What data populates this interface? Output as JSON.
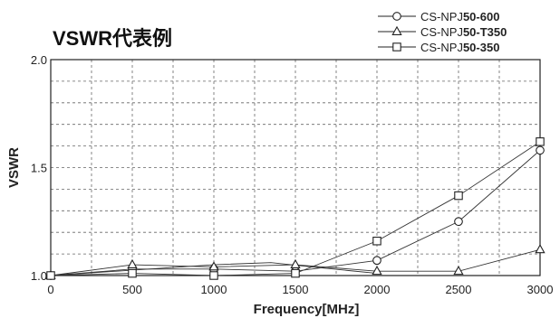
{
  "chart_data": {
    "type": "line",
    "title": "VSWR代表例",
    "xlabel": "Frequency[MHz]",
    "ylabel": "VSWR",
    "xlim": [
      0,
      3000
    ],
    "ylim": [
      1.0,
      2.0
    ],
    "x_ticks": [
      "0",
      "500",
      "1000",
      "1500",
      "2000",
      "2500",
      "3000"
    ],
    "y_ticks": [
      "1.0",
      "1.5",
      "2.0"
    ],
    "grid": true,
    "legend_position": "top-right",
    "series": [
      {
        "name": "CS-NPJ50-600",
        "name_prefix": "CS-NPJ",
        "name_suffix": "50-600",
        "marker": "circle",
        "points": [
          {
            "x": 0,
            "y": 1.0
          },
          {
            "x": 500,
            "y": 1.03
          },
          {
            "x": 1000,
            "y": 1.03
          },
          {
            "x": 1500,
            "y": 1.02
          },
          {
            "x": 2000,
            "y": 1.07
          },
          {
            "x": 2500,
            "y": 1.25
          },
          {
            "x": 3000,
            "y": 1.58
          }
        ]
      },
      {
        "name": "CS-NPJ50-T350",
        "name_prefix": "CS-NPJ",
        "name_suffix": "50-T350",
        "marker": "triangle",
        "points": [
          {
            "x": 0,
            "y": 1.0
          },
          {
            "x": 500,
            "y": 1.05
          },
          {
            "x": 1000,
            "y": 1.04
          },
          {
            "x": 1500,
            "y": 1.05
          },
          {
            "x": 2000,
            "y": 1.02
          },
          {
            "x": 2500,
            "y": 1.02
          },
          {
            "x": 3000,
            "y": 1.12
          }
        ]
      },
      {
        "name": "CS-NPJ50-350",
        "name_prefix": "CS-NPJ",
        "name_suffix": "50-350",
        "marker": "square",
        "points": [
          {
            "x": 0,
            "y": 1.0
          },
          {
            "x": 500,
            "y": 1.01
          },
          {
            "x": 1000,
            "y": 1.0
          },
          {
            "x": 1500,
            "y": 1.01
          },
          {
            "x": 2000,
            "y": 1.16
          },
          {
            "x": 2500,
            "y": 1.37
          },
          {
            "x": 3000,
            "y": 1.62
          }
        ]
      }
    ],
    "extra_line": {
      "points": [
        {
          "x": 0,
          "y": 1.0
        },
        {
          "x": 1000,
          "y": 1.05
        },
        {
          "x": 1350,
          "y": 1.06
        },
        {
          "x": 1600,
          "y": 1.04
        },
        {
          "x": 2000,
          "y": 1.01
        }
      ]
    }
  }
}
